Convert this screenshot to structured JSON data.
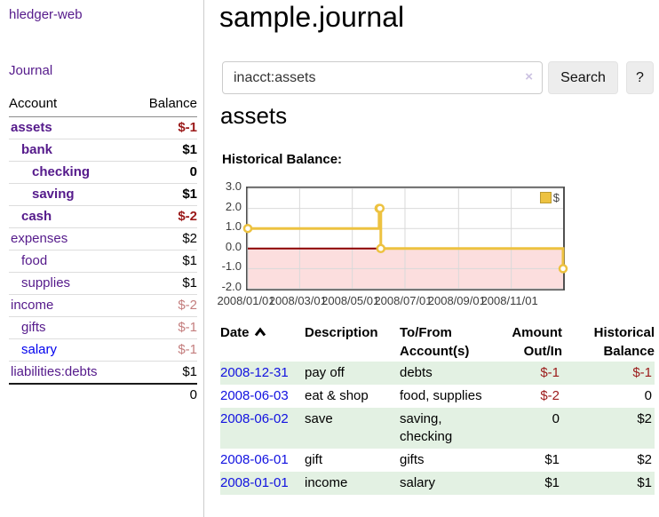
{
  "sidebar": {
    "app_title": "hledger-web",
    "journal_label": "Journal",
    "accounts_table": {
      "header_account": "Account",
      "header_balance": "Balance",
      "rows": [
        {
          "name": "assets",
          "indent": 1,
          "bold": true,
          "link_state": "visited",
          "balance": "$-1",
          "balance_tone": "neg-strong"
        },
        {
          "name": "bank",
          "indent": 2,
          "bold": true,
          "link_state": "visited",
          "balance": "$1",
          "balance_tone": "normal"
        },
        {
          "name": "checking",
          "indent": 3,
          "bold": true,
          "link_state": "visited",
          "balance": "0",
          "balance_tone": "normal"
        },
        {
          "name": "saving",
          "indent": 3,
          "bold": true,
          "link_state": "visited",
          "balance": "$1",
          "balance_tone": "normal"
        },
        {
          "name": "cash",
          "indent": 2,
          "bold": true,
          "link_state": "visited",
          "balance": "$-2",
          "balance_tone": "neg-strong"
        },
        {
          "name": "expenses",
          "indent": 1,
          "bold": false,
          "link_state": "visited",
          "balance": "$2",
          "balance_tone": "normal"
        },
        {
          "name": "food",
          "indent": 2,
          "bold": false,
          "link_state": "visited",
          "balance": "$1",
          "balance_tone": "normal"
        },
        {
          "name": "supplies",
          "indent": 2,
          "bold": false,
          "link_state": "visited",
          "balance": "$1",
          "balance_tone": "normal"
        },
        {
          "name": "income",
          "indent": 1,
          "bold": false,
          "link_state": "visited",
          "balance": "$-2",
          "balance_tone": "neg-soft"
        },
        {
          "name": "gifts",
          "indent": 2,
          "bold": false,
          "link_state": "visited",
          "balance": "$-1",
          "balance_tone": "neg-soft"
        },
        {
          "name": "salary",
          "indent": 2,
          "bold": false,
          "link_state": "unvisited",
          "balance": "$-1",
          "balance_tone": "neg-soft"
        },
        {
          "name": "liabilities:debts",
          "indent": 1,
          "bold": false,
          "link_state": "visited",
          "balance": "$1",
          "balance_tone": "normal"
        }
      ],
      "total": "0"
    }
  },
  "main": {
    "title": "sample.journal",
    "search": {
      "value": "inacct:assets",
      "clear_icon": "×",
      "button_label": "Search",
      "help_label": "?"
    },
    "account_heading": "assets",
    "register_table": {
      "headers": [
        {
          "key": "date",
          "lines": [
            "Date"
          ],
          "align": "left",
          "sorted": "asc"
        },
        {
          "key": "description",
          "lines": [
            "Description"
          ],
          "align": "left"
        },
        {
          "key": "accounts",
          "lines": [
            "To/From",
            "Account(s)"
          ],
          "align": "left"
        },
        {
          "key": "amount",
          "lines": [
            "Amount",
            "Out/In"
          ],
          "align": "right"
        },
        {
          "key": "balance",
          "lines": [
            "Historical",
            "Balance"
          ],
          "align": "right"
        }
      ],
      "rows": [
        {
          "date": "2008-12-31",
          "description": "pay off",
          "accounts": "debts",
          "amount": "$-1",
          "amount_negative": true,
          "balance": "$-1",
          "balance_negative": true
        },
        {
          "date": "2008-06-03",
          "description": "eat & shop",
          "accounts": "food, supplies",
          "amount": "$-2",
          "amount_negative": true,
          "balance": "0",
          "balance_negative": false
        },
        {
          "date": "2008-06-02",
          "description": "save",
          "accounts": "saving, checking",
          "amount": "0",
          "amount_negative": false,
          "balance": "$2",
          "balance_negative": false
        },
        {
          "date": "2008-06-01",
          "description": "gift",
          "accounts": "gifts",
          "amount": "$1",
          "amount_negative": false,
          "balance": "$2",
          "balance_negative": false
        },
        {
          "date": "2008-01-01",
          "description": "income",
          "accounts": "salary",
          "amount": "$1",
          "amount_negative": false,
          "balance": "$1",
          "balance_negative": false
        }
      ]
    }
  },
  "chart_data": {
    "type": "line",
    "step": true,
    "title": "Historical Balance:",
    "legend_label": "$",
    "legend_position": "top-right",
    "grid": true,
    "x_range": {
      "start": "2008-01-01",
      "end": "2008-12-31"
    },
    "ylim": [
      -2,
      3
    ],
    "y_ticks": [
      {
        "label": "3.0",
        "value": 3
      },
      {
        "label": "2.0",
        "value": 2
      },
      {
        "label": "1.0",
        "value": 1
      },
      {
        "label": "0.0",
        "value": 0
      },
      {
        "label": "-1.0",
        "value": -1
      },
      {
        "label": "-2.0",
        "value": -2
      }
    ],
    "x_ticks": [
      {
        "label": "2008/01/01",
        "date": "2008-01-01"
      },
      {
        "label": "2008/03/01",
        "date": "2008-03-01"
      },
      {
        "label": "2008/05/01",
        "date": "2008-05-01"
      },
      {
        "label": "2008/07/01",
        "date": "2008-07-01"
      },
      {
        "label": "2008/09/01",
        "date": "2008-09-01"
      },
      {
        "label": "2008/11/01",
        "date": "2008-11-01"
      }
    ],
    "series": [
      {
        "name": "$",
        "color": "#edc240",
        "marker": "circle",
        "points": [
          [
            "2008-01-01",
            1
          ],
          [
            "2008-06-01",
            2
          ],
          [
            "2008-06-02",
            2
          ],
          [
            "2008-06-03",
            0
          ],
          [
            "2008-12-31",
            -1
          ]
        ]
      }
    ],
    "negative_fill": "#fcdede",
    "zero_line_color": "#8b0000",
    "grid_color": "#d9d9d9"
  },
  "colors": {
    "link_purple": "#551a8b",
    "link_blue": "#0000ee",
    "negative_strong": "#9b1a1a",
    "negative_soft": "#c47e7e",
    "striped_row_green": "#e3f1e3",
    "chart_gold": "#edc240",
    "chart_negative_bg": "#fcdede",
    "zero_line": "#8b0000"
  }
}
